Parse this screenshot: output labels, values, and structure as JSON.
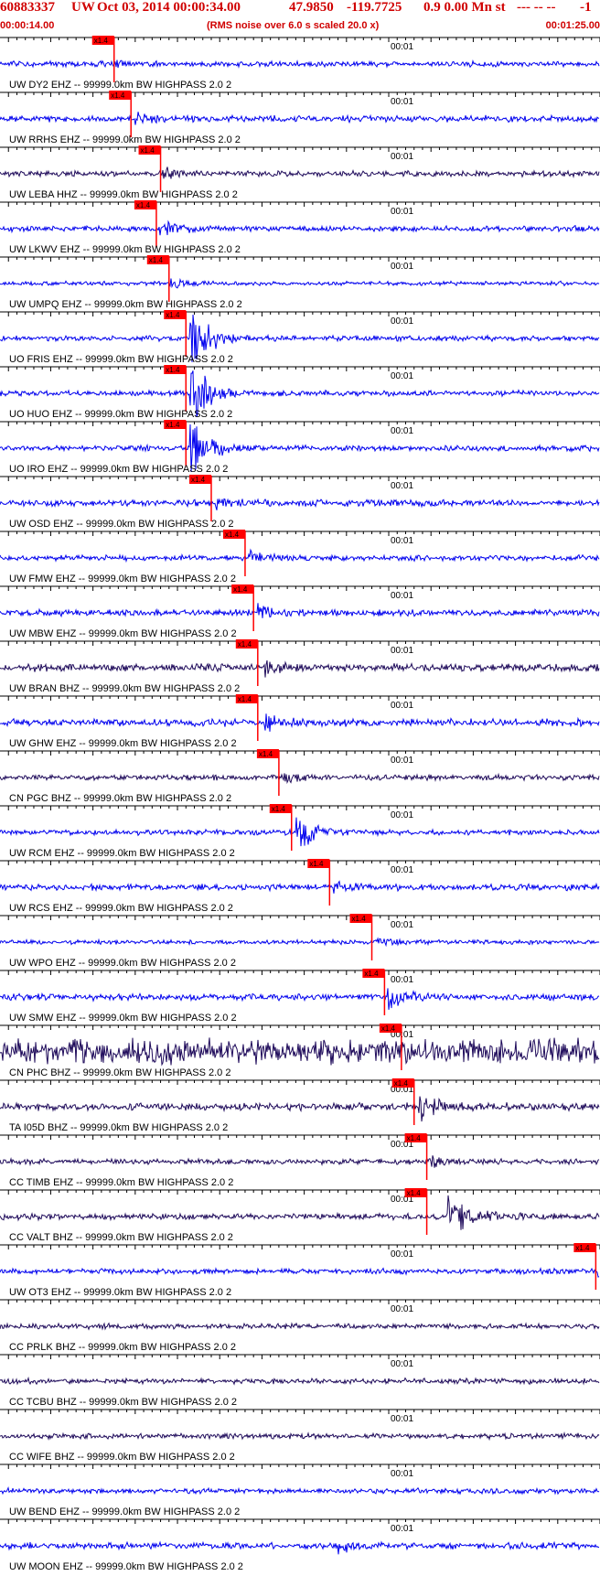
{
  "header": {
    "event_id": "60883337",
    "network": "UW",
    "datetime": "Oct 03, 2014 00:00:34.00",
    "latitude": "47.9850",
    "longitude": "-119.7725",
    "depth_mag": "0.9 0.00 Mn st",
    "flags": "--- -- --",
    "right_marker": "-1",
    "start_time": "00:00:14.00",
    "rms_note": "(RMS noise over 6.0 s scaled 20.0 x)",
    "end_time": "00:01:25.00"
  },
  "colors": {
    "header_text": "#d00000",
    "pick": "#ff0000",
    "trace_blue": "#0000ee",
    "trace_dark": "#1e0a5a",
    "axis": "#000000"
  },
  "chart_data": {
    "type": "seismogram",
    "time_range": [
      "00:00:14.00",
      "00:01:25.00"
    ],
    "timeline_tick_label": "00:01",
    "pick_label": "x1.4",
    "traces": [
      {
        "label": "UW DY2 EHZ -- 99999.0km BW HIGHPASS 2.0 2",
        "color": "blue",
        "pick_time": 27.5,
        "amplitude": 0.25,
        "burst_time": 27.5,
        "burst_amp": 0.3
      },
      {
        "label": "UW RRHS EHZ -- 99999.0km BW HIGHPASS 2.0 2",
        "color": "blue",
        "pick_time": 29.5,
        "amplitude": 0.3,
        "burst_time": 29.7,
        "burst_amp": 0.5
      },
      {
        "label": "UW LEBA HHZ -- 99999.0km BW HIGHPASS 2.0 2",
        "color": "dark",
        "pick_time": 33.0,
        "amplitude": 0.25,
        "burst_time": 33.2,
        "burst_amp": 0.6
      },
      {
        "label": "UW LKWV EHZ -- 99999.0km BW HIGHPASS 2.0 2",
        "color": "blue",
        "pick_time": 32.5,
        "amplitude": 0.25,
        "burst_time": 32.8,
        "burst_amp": 1.0
      },
      {
        "label": "UW UMPQ EHZ -- 99999.0km BW HIGHPASS 2.0 2",
        "color": "blue",
        "pick_time": 34.0,
        "amplitude": 0.2,
        "burst_time": 34.2,
        "burst_amp": 0.5
      },
      {
        "label": "UO FRIS EHZ -- 99999.0km BW HIGHPASS 2.0 2",
        "color": "blue",
        "pick_time": 36.0,
        "amplitude": 0.25,
        "burst_time": 36.5,
        "burst_amp": 3.5
      },
      {
        "label": "UO HUO EHZ -- 99999.0km BW HIGHPASS 2.0 2",
        "color": "blue",
        "pick_time": 36.0,
        "amplitude": 0.25,
        "burst_time": 36.5,
        "burst_amp": 3.5
      },
      {
        "label": "UO IRO EHZ -- 99999.0km BW HIGHPASS 2.0 2",
        "color": "blue",
        "pick_time": 36.0,
        "amplitude": 0.25,
        "burst_time": 36.5,
        "burst_amp": 3.5
      },
      {
        "label": "UW OSD EHZ -- 99999.0km BW HIGHPASS 2.0 2",
        "color": "blue",
        "pick_time": 39.0,
        "amplitude": 0.3,
        "burst_time": 39.5,
        "burst_amp": 0.6
      },
      {
        "label": "UW FMW EHZ -- 99999.0km BW HIGHPASS 2.0 2",
        "color": "blue",
        "pick_time": 43.0,
        "amplitude": 0.25,
        "burst_time": 43.4,
        "burst_amp": 0.6
      },
      {
        "label": "UW MBW EHZ -- 99999.0km BW HIGHPASS 2.0 2",
        "color": "blue",
        "pick_time": 44.0,
        "amplitude": 0.3,
        "burst_time": 44.5,
        "burst_amp": 0.6
      },
      {
        "label": "UW BRAN BHZ -- 99999.0km BW HIGHPASS 2.0 2",
        "color": "dark",
        "pick_time": 44.5,
        "amplitude": 0.35,
        "burst_time": 45.3,
        "burst_amp": 0.8
      },
      {
        "label": "UW GHW EHZ -- 99999.0km BW HIGHPASS 2.0 2",
        "color": "blue",
        "pick_time": 44.5,
        "amplitude": 0.35,
        "burst_time": 45.3,
        "burst_amp": 0.8
      },
      {
        "label": "CN PGC BHZ -- 99999.0km BW HIGHPASS 2.0 2",
        "color": "dark",
        "pick_time": 47.0,
        "amplitude": 0.25,
        "burst_time": 47.3,
        "burst_amp": 0.5
      },
      {
        "label": "UW RCM EHZ -- 99999.0km BW HIGHPASS 2.0 2",
        "color": "blue",
        "pick_time": 48.5,
        "amplitude": 0.25,
        "burst_time": 49.0,
        "burst_amp": 2.0
      },
      {
        "label": "UW RCS EHZ -- 99999.0km BW HIGHPASS 2.0 2",
        "color": "blue",
        "pick_time": 53.0,
        "amplitude": 0.3,
        "burst_time": 53.5,
        "burst_amp": 0.6
      },
      {
        "label": "UW WPO EHZ -- 99999.0km BW HIGHPASS 2.0 2",
        "color": "blue",
        "pick_time": 58.0,
        "amplitude": 0.2,
        "burst_time": 58.2,
        "burst_amp": 0.4
      },
      {
        "label": "UW SMW EHZ -- 99999.0km BW HIGHPASS 2.0 2",
        "color": "blue",
        "pick_time": 59.5,
        "amplitude": 0.3,
        "burst_time": 59.8,
        "burst_amp": 1.2
      },
      {
        "label": "CN PHC BHZ -- 99999.0km BW HIGHPASS 2.0 2",
        "color": "dark",
        "pick_time": 61.5,
        "amplitude": 1.2,
        "burst_time": 61.5,
        "burst_amp": 0.0
      },
      {
        "label": "TA I05D BHZ -- 99999.0km BW HIGHPASS 2.0 2",
        "color": "dark",
        "pick_time": 63.0,
        "amplitude": 0.35,
        "burst_time": 63.5,
        "burst_amp": 1.5
      },
      {
        "label": "CC TIMB EHZ -- 99999.0km BW HIGHPASS 2.0 2",
        "color": "dark",
        "pick_time": 64.5,
        "amplitude": 0.25,
        "burst_time": 65.0,
        "burst_amp": 0.5
      },
      {
        "label": "CC VALT BHZ -- 99999.0km BW HIGHPASS 2.0 2",
        "color": "dark",
        "pick_time": 64.5,
        "amplitude": 0.3,
        "burst_time": 67.0,
        "burst_amp": 3.0
      },
      {
        "label": "UW OT3 EHZ -- 99999.0km BW HIGHPASS 2.0 2",
        "color": "blue",
        "pick_time": 84.5,
        "amplitude": 0.25,
        "burst_time": 84.7,
        "burst_amp": 0.6
      },
      {
        "label": "CC PRLK BHZ -- 99999.0km BW HIGHPASS 2.0 2",
        "color": "dark",
        "pick_time": null,
        "amplitude": 0.25,
        "burst_time": null,
        "burst_amp": 0.0
      },
      {
        "label": "CC TCBU BHZ -- 99999.0km BW HIGHPASS 2.0 2",
        "color": "dark",
        "pick_time": null,
        "amplitude": 0.25,
        "burst_time": null,
        "burst_amp": 0.0
      },
      {
        "label": "CC WIFE BHZ -- 99999.0km BW HIGHPASS 2.0 2",
        "color": "dark",
        "pick_time": null,
        "amplitude": 0.25,
        "burst_time": null,
        "burst_amp": 0.0
      },
      {
        "label": "UW BEND EHZ -- 99999.0km BW HIGHPASS 2.0 2",
        "color": "blue",
        "pick_time": null,
        "amplitude": 0.25,
        "burst_time": null,
        "burst_amp": 0.0
      },
      {
        "label": "UW MOON EHZ -- 99999.0km BW HIGHPASS 2.0 2",
        "color": "blue",
        "pick_time": null,
        "amplitude": 0.3,
        "burst_time": 54.0,
        "burst_amp": 0.5
      }
    ]
  }
}
